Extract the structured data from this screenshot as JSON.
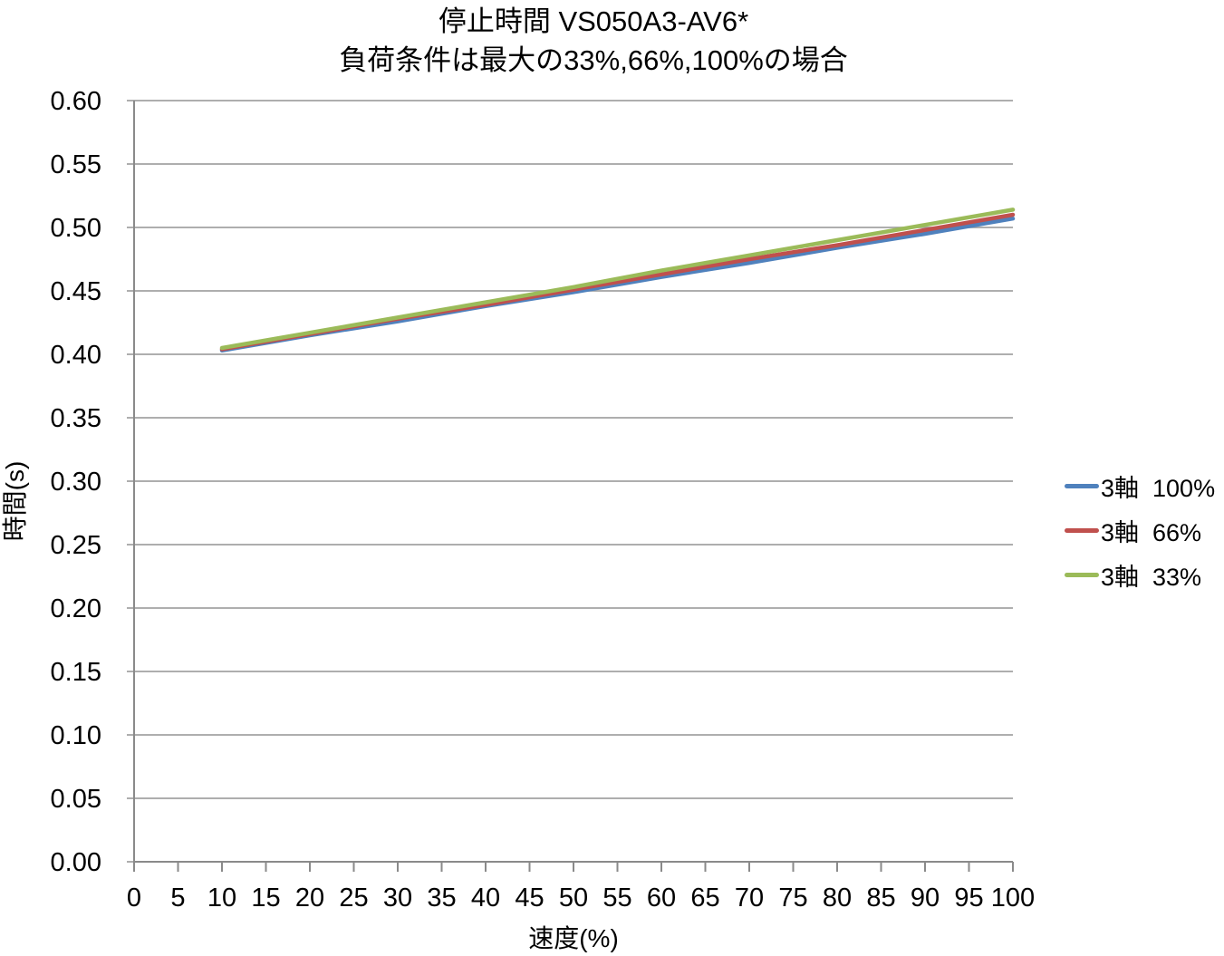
{
  "chart_data": {
    "type": "line",
    "title": "停止時間 VS050A3-AV6*",
    "subtitle": "負荷条件は最大の33%,66%,100%の場合",
    "xlabel": "速度(%)",
    "ylabel": "時間(s)",
    "xlim": [
      0,
      100
    ],
    "ylim": [
      0.0,
      0.6
    ],
    "x_ticks": [
      0,
      5,
      10,
      15,
      20,
      25,
      30,
      35,
      40,
      45,
      50,
      55,
      60,
      65,
      70,
      75,
      80,
      85,
      90,
      95,
      100
    ],
    "y_ticks": [
      0.0,
      0.05,
      0.1,
      0.15,
      0.2,
      0.25,
      0.3,
      0.35,
      0.4,
      0.45,
      0.5,
      0.55,
      0.6
    ],
    "y_tick_decimals": 2,
    "grid": "horizontal-only",
    "legend_position": "right",
    "x": [
      10,
      20,
      30,
      40,
      50,
      60,
      70,
      80,
      90,
      100
    ],
    "series": [
      {
        "name": "3軸  100%",
        "color": "#4F81BD",
        "values": [
          0.403,
          0.415,
          0.426,
          0.438,
          0.449,
          0.461,
          0.472,
          0.484,
          0.495,
          0.507
        ]
      },
      {
        "name": "3軸  66%",
        "color": "#C0504D",
        "values": [
          0.404,
          0.416,
          0.428,
          0.439,
          0.451,
          0.463,
          0.475,
          0.486,
          0.498,
          0.51
        ]
      },
      {
        "name": "3軸  33%",
        "color": "#9BBB59",
        "values": [
          0.405,
          0.417,
          0.429,
          0.441,
          0.453,
          0.466,
          0.478,
          0.49,
          0.502,
          0.514
        ]
      }
    ],
    "colors": {
      "gridline": "#a3a3a3",
      "axis": "#8a8a8a",
      "text": "#000000",
      "background": "#ffffff"
    }
  }
}
